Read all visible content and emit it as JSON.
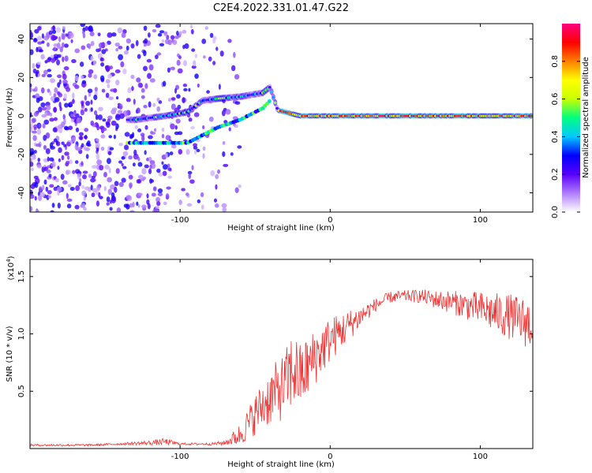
{
  "title": "C2E4.2022.331.01.47.G22",
  "chart_data": [
    {
      "type": "heatmap",
      "xlabel": "Height of straight line (km)",
      "ylabel": "Frequency (Hz)",
      "xlim": [
        -200,
        135
      ],
      "ylim": [
        -50,
        48
      ],
      "x_ticks": [
        -100,
        0,
        100
      ],
      "y_ticks": [
        -40,
        -20,
        0,
        20,
        40
      ],
      "grid": false,
      "colorbar": {
        "label": "Normalized spectral amplitude",
        "ticks": [
          0.0,
          0.2,
          0.4,
          0.6,
          0.8
        ],
        "range": [
          0,
          1
        ],
        "colors": [
          "#ffffff",
          "#b07cff",
          "#5a00ff",
          "#0000ff",
          "#00c8ff",
          "#00ff80",
          "#c8ff00",
          "#ffff00",
          "#ff8000",
          "#ff0000",
          "#ff0080"
        ]
      },
      "ridge": {
        "description_points_x": [
          -130,
          -110,
          -95,
          -85,
          -75,
          -60,
          -45,
          -40,
          -35,
          -20,
          0,
          50,
          100,
          135
        ],
        "frequency_hz": [
          -2,
          0,
          2,
          8,
          9,
          10,
          12,
          15,
          3,
          0,
          0,
          0,
          0,
          0
        ]
      },
      "lower_branch": {
        "x": [
          -135,
          -110,
          -95,
          -85,
          -75,
          -60,
          -45,
          -40
        ],
        "frequency_hz": [
          -14,
          -14,
          -14,
          -10,
          -6,
          -2,
          4,
          8
        ]
      }
    },
    {
      "type": "line",
      "xlabel": "Height of straight line (km)",
      "ylabel": "SNR (10 * v/v)",
      "y_multiplier_label": "(x10",
      "y_multiplier_exp": "4",
      "y_multiplier_close": ")",
      "xlim": [
        -200,
        135
      ],
      "ylim": [
        0,
        1.65
      ],
      "x_ticks": [
        -100,
        0,
        100
      ],
      "y_ticks": [
        0.5,
        1.0,
        1.5
      ],
      "y_tick_labels": [
        "0.5",
        "1.0",
        "1.5"
      ],
      "color": "#ee3333",
      "series": [
        {
          "x": [
            -200,
            -180,
            -160,
            -140,
            -120,
            -110,
            -100,
            -90,
            -80,
            -70,
            -60,
            -50,
            -40,
            -30,
            -25,
            -20,
            -10,
            0,
            10,
            20,
            30,
            40,
            50,
            60,
            70,
            80,
            90,
            100,
            110,
            120,
            130,
            135
          ],
          "values": [
            0.03,
            0.03,
            0.03,
            0.04,
            0.05,
            0.06,
            0.04,
            0.04,
            0.04,
            0.05,
            0.12,
            0.3,
            0.45,
            0.55,
            0.7,
            0.62,
            0.8,
            0.95,
            1.05,
            1.15,
            1.25,
            1.32,
            1.33,
            1.33,
            1.3,
            1.28,
            1.25,
            1.22,
            1.18,
            1.15,
            1.1,
            1.08
          ],
          "noise": [
            0.01,
            0.01,
            0.01,
            0.01,
            0.02,
            0.03,
            0.01,
            0.01,
            0.01,
            0.02,
            0.1,
            0.18,
            0.25,
            0.3,
            0.35,
            0.3,
            0.25,
            0.2,
            0.15,
            0.1,
            0.06,
            0.05,
            0.05,
            0.06,
            0.08,
            0.1,
            0.12,
            0.15,
            0.18,
            0.2,
            0.22,
            0.22
          ]
        }
      ]
    }
  ]
}
